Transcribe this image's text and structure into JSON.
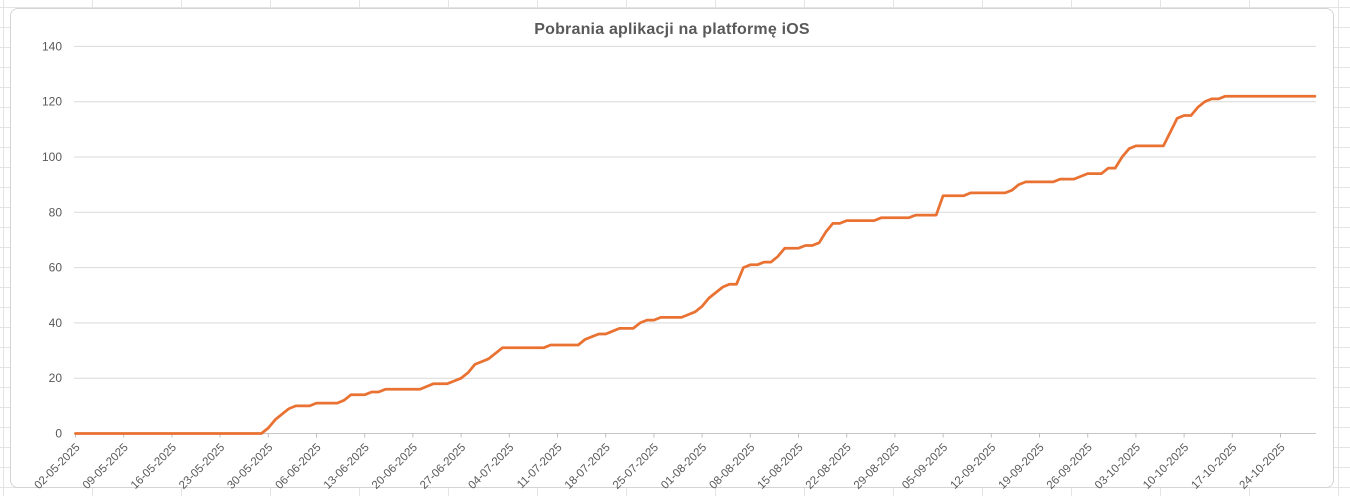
{
  "chart_data": {
    "type": "line",
    "title": "Pobrania aplikacji na platformę iOS",
    "xlabel": "",
    "ylabel": "",
    "ylim": [
      0,
      140
    ],
    "y_ticks": [
      0,
      20,
      40,
      60,
      80,
      100,
      120,
      140
    ],
    "grid": "horizontal",
    "legend": "none",
    "x_interval": "daily",
    "x_start_date": "02-05-2025",
    "x_tick_labels": [
      "02-05-2025",
      "09-05-2025",
      "16-05-2025",
      "23-05-2025",
      "30-05-2025",
      "06-06-2025",
      "13-06-2025",
      "20-06-2025",
      "27-06-2025",
      "04-07-2025",
      "11-07-2025",
      "18-07-2025",
      "25-07-2025",
      "01-08-2025",
      "08-08-2025",
      "15-08-2025",
      "22-08-2025",
      "29-08-2025",
      "05-09-2025",
      "12-09-2025",
      "19-09-2025",
      "26-09-2025",
      "03-10-2025",
      "10-10-2025",
      "17-10-2025",
      "24-10-2025"
    ],
    "series": [
      {
        "color": "#E97132",
        "values": [
          0,
          0,
          0,
          0,
          0,
          0,
          0,
          0,
          0,
          0,
          0,
          0,
          0,
          0,
          0,
          0,
          0,
          0,
          0,
          0,
          0,
          0,
          0,
          0,
          0,
          0,
          0,
          0,
          2,
          5,
          7,
          9,
          10,
          10,
          10,
          11,
          11,
          11,
          11,
          12,
          14,
          14,
          14,
          15,
          15,
          16,
          16,
          16,
          16,
          16,
          16,
          17,
          18,
          18,
          18,
          19,
          20,
          22,
          25,
          26,
          27,
          29,
          31,
          31,
          31,
          31,
          31,
          31,
          31,
          32,
          32,
          32,
          32,
          32,
          34,
          35,
          36,
          36,
          37,
          38,
          38,
          38,
          40,
          41,
          41,
          42,
          42,
          42,
          42,
          43,
          44,
          46,
          49,
          51,
          53,
          54,
          54,
          60,
          61,
          61,
          62,
          62,
          64,
          67,
          67,
          67,
          68,
          68,
          69,
          73,
          76,
          76,
          77,
          77,
          77,
          77,
          77,
          78,
          78,
          78,
          78,
          78,
          79,
          79,
          79,
          79,
          86,
          86,
          86,
          86,
          87,
          87,
          87,
          87,
          87,
          87,
          88,
          90,
          91,
          91,
          91,
          91,
          91,
          92,
          92,
          92,
          93,
          94,
          94,
          94,
          96,
          96,
          100,
          103,
          104,
          104,
          104,
          104,
          104,
          109,
          114,
          115,
          115,
          118,
          120,
          121,
          121,
          122,
          122,
          122,
          122,
          122,
          122,
          122,
          122,
          122,
          122,
          122,
          122,
          122,
          122
        ]
      }
    ],
    "colors": {
      "line": "#E97132",
      "gridline": "#D9D9D9",
      "axis_line": "#C6C6C6",
      "tick_mark": "#BFBFBF",
      "label_text": "#595959",
      "title_text": "#595959"
    }
  }
}
